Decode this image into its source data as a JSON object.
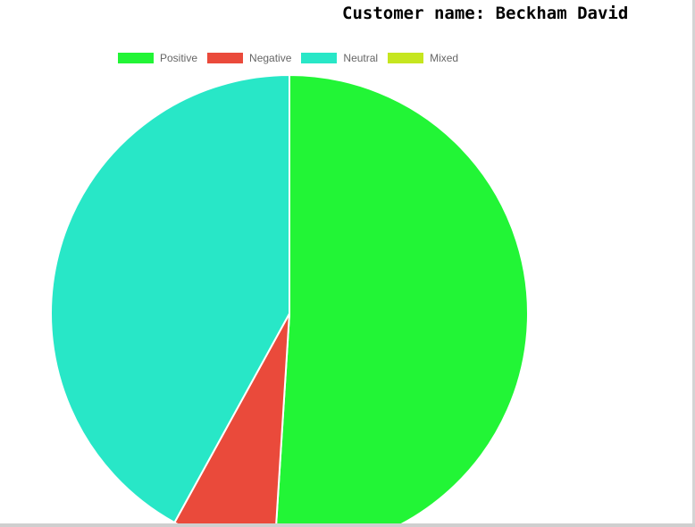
{
  "chart_data": {
    "type": "pie",
    "title": "Customer name: Beckham David",
    "legend_position": "top",
    "labels": [
      "Positive",
      "Negative",
      "Neutral",
      "Mixed"
    ],
    "values": [
      51,
      7,
      42,
      0
    ],
    "colors": [
      "#22f536",
      "#ea4a3b",
      "#28e7c7",
      "#c6e61f"
    ]
  }
}
